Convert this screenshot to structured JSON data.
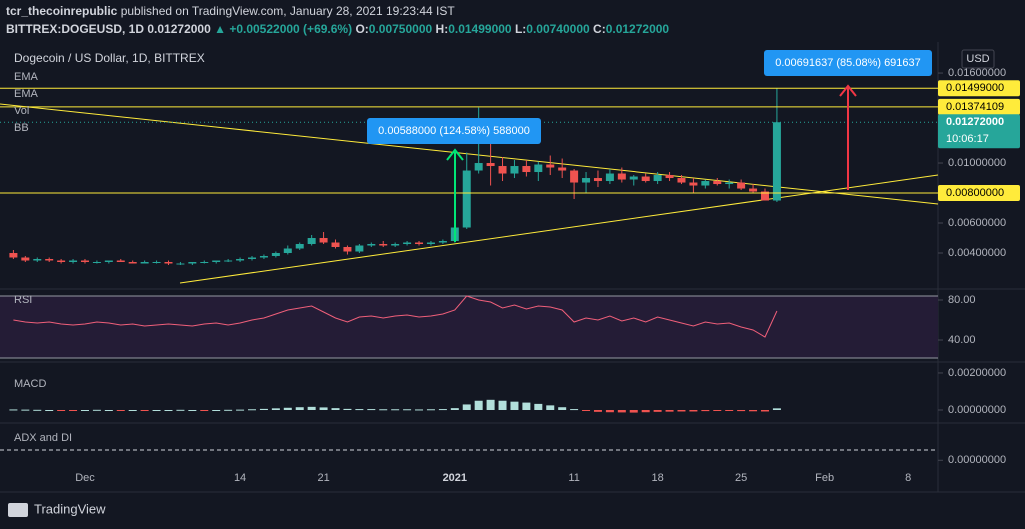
{
  "header": {
    "publisher": "tcr_thecoinrepublic",
    "published_text": "published on TradingView.com, January 28, 2021 19:23:44 IST",
    "symbol": "BITTREX:DOGEUSD, 1D",
    "price": "0.01272000",
    "change": "▲ +0.00522000 (+69.6%)",
    "ohlc": [
      {
        "key": "O:",
        "value": "0.00750000"
      },
      {
        "key": "H:",
        "value": "0.01499000"
      },
      {
        "key": "L:",
        "value": "0.00740000"
      },
      {
        "key": "C:",
        "value": "0.01272000"
      }
    ]
  },
  "chart_data": [
    {
      "type": "candlestick",
      "title": "Dogecoin / US Dollar, 1D, BITTREX",
      "indicators": [
        "EMA",
        "EMA",
        "Vol",
        "BB"
      ],
      "currency": "USD",
      "categories": [
        null,
        null,
        null,
        null,
        null,
        null,
        "Dec",
        null,
        null,
        null,
        null,
        null,
        null,
        null,
        null,
        null,
        null,
        null,
        null,
        "14",
        null,
        null,
        null,
        null,
        null,
        null,
        "21",
        null,
        null,
        null,
        null,
        null,
        null,
        null,
        null,
        null,
        null,
        "2021",
        null,
        null,
        null,
        null,
        null,
        null,
        null,
        null,
        null,
        "11",
        null,
        null,
        null,
        null,
        null,
        null,
        "18",
        null,
        null,
        null,
        null,
        null,
        null,
        "25",
        null,
        null,
        null,
        null,
        null,
        null,
        "Feb",
        null,
        null,
        null,
        null,
        null,
        null,
        "8",
        null,
        null
      ],
      "open": [
        0.004,
        0.0037,
        0.0035,
        0.0036,
        0.0035,
        0.0034,
        0.0035,
        0.0034,
        0.0034,
        0.0035,
        0.0034,
        0.0033,
        0.0034,
        0.0034,
        0.0033,
        0.0033,
        0.0034,
        0.0034,
        0.0035,
        0.0035,
        0.0036,
        0.0037,
        0.0038,
        0.004,
        0.0043,
        0.0046,
        0.005,
        0.0047,
        0.0044,
        0.0041,
        0.0045,
        0.0046,
        0.0045,
        0.0046,
        0.0047,
        0.0046,
        0.0047,
        0.0048,
        0.0057,
        0.0095,
        0.01,
        0.0098,
        0.0093,
        0.0098,
        0.0094,
        0.0099,
        0.0097,
        0.0095,
        0.0087,
        0.009,
        0.0088,
        0.0093,
        0.0089,
        0.0091,
        0.0088,
        0.0092,
        0.009,
        0.0087,
        0.0085,
        0.0088,
        0.0086,
        0.0087,
        0.0083,
        0.0081,
        0.0075,
        null,
        null,
        null,
        null,
        null,
        null,
        null,
        null,
        null,
        null,
        null,
        null,
        null
      ],
      "high": [
        0.0042,
        0.0038,
        0.0037,
        0.0037,
        0.0036,
        0.0036,
        0.0036,
        0.0035,
        0.0035,
        0.0036,
        0.0035,
        0.0035,
        0.0035,
        0.0035,
        0.0034,
        0.0034,
        0.0035,
        0.0035,
        0.0036,
        0.0037,
        0.0038,
        0.0039,
        0.0041,
        0.0045,
        0.0047,
        0.0052,
        0.0054,
        0.0049,
        0.0045,
        0.0046,
        0.0047,
        0.0048,
        0.0047,
        0.0048,
        0.0048,
        0.0048,
        0.0049,
        0.0058,
        0.0107,
        0.0137,
        0.012,
        0.0104,
        0.0102,
        0.0102,
        0.0101,
        0.0105,
        0.0103,
        0.0096,
        0.0094,
        0.0095,
        0.0096,
        0.0097,
        0.0092,
        0.0093,
        0.0094,
        0.0094,
        0.0092,
        0.009,
        0.0089,
        0.009,
        0.0089,
        0.0089,
        0.0086,
        0.0083,
        0.01499,
        null,
        null,
        null,
        null,
        null,
        null,
        null,
        null,
        null,
        null,
        null,
        null,
        null
      ],
      "low": [
        0.0036,
        0.0034,
        0.0034,
        0.0034,
        0.0033,
        0.0033,
        0.0033,
        0.0033,
        0.0033,
        0.0034,
        0.0033,
        0.0033,
        0.0033,
        0.0032,
        0.0032,
        0.0032,
        0.0033,
        0.0033,
        0.0034,
        0.0034,
        0.0035,
        0.0036,
        0.0037,
        0.0039,
        0.0042,
        0.0045,
        0.0046,
        0.0043,
        0.0039,
        0.004,
        0.0044,
        0.0044,
        0.0044,
        0.0045,
        0.0045,
        0.0045,
        0.0046,
        0.0047,
        0.0056,
        0.0093,
        0.0085,
        0.0088,
        0.009,
        0.0091,
        0.0088,
        0.0092,
        0.009,
        0.0076,
        0.008,
        0.0084,
        0.0086,
        0.0087,
        0.0085,
        0.0087,
        0.0086,
        0.0088,
        0.0086,
        0.008,
        0.0083,
        0.0085,
        0.0083,
        0.0082,
        0.008,
        0.0075,
        0.0074,
        null,
        null,
        null,
        null,
        null,
        null,
        null,
        null,
        null,
        null,
        null,
        null,
        null
      ],
      "close": [
        0.0037,
        0.0035,
        0.0036,
        0.0035,
        0.0034,
        0.0035,
        0.0034,
        0.0034,
        0.0035,
        0.0034,
        0.0033,
        0.0034,
        0.0034,
        0.0033,
        0.0033,
        0.0034,
        0.0034,
        0.0035,
        0.0035,
        0.0036,
        0.0037,
        0.0038,
        0.004,
        0.0043,
        0.0046,
        0.005,
        0.0047,
        0.0044,
        0.0041,
        0.0045,
        0.0046,
        0.0045,
        0.0046,
        0.0047,
        0.0046,
        0.0047,
        0.0048,
        0.0057,
        0.0095,
        0.01,
        0.0098,
        0.0093,
        0.0098,
        0.0094,
        0.0099,
        0.0097,
        0.0095,
        0.0087,
        0.009,
        0.0088,
        0.0093,
        0.0089,
        0.0091,
        0.0088,
        0.0092,
        0.009,
        0.0087,
        0.0085,
        0.0088,
        0.0086,
        0.0087,
        0.0083,
        0.0081,
        0.0075,
        0.01272,
        null,
        null,
        null,
        null,
        null,
        null,
        null,
        null,
        null,
        null,
        null,
        null,
        null
      ],
      "up_color": "#26a69a",
      "down_color": "#ef5350",
      "ylim": [
        0.002,
        0.01787
      ],
      "yticks": [
        {
          "value": 0.016,
          "label": "0.01600000"
        },
        {
          "value": 0.01,
          "label": "0.01000000"
        },
        {
          "value": 0.006,
          "label": "0.00600000"
        },
        {
          "value": 0.004,
          "label": "0.00400000"
        }
      ],
      "price_lines": [
        {
          "value": 0.01499,
          "label": "0.01499000",
          "color": "#ffeb3b"
        },
        {
          "value": 0.01374109,
          "label": "0.01374109",
          "color": "#ffeb3b"
        },
        {
          "value": 0.008,
          "label": "0.00800000",
          "color": "#ffeb3b"
        }
      ],
      "last_price": {
        "value": 0.01272,
        "label": "0.01272000",
        "countdown": "10:06:17",
        "color": "#26a69a"
      },
      "annotations": [
        "0.00588000 (124.58%) 588000",
        "0.00691637 (85.08%) 691637"
      ]
    },
    {
      "type": "line",
      "title": "RSI",
      "color": "#f05f7a",
      "values": [
        60,
        58,
        57,
        58,
        56,
        55,
        56,
        58,
        57,
        55,
        56,
        54,
        55,
        56,
        55,
        54,
        56,
        57,
        55,
        57,
        60,
        62,
        66,
        70,
        72,
        74,
        68,
        62,
        58,
        63,
        64,
        62,
        64,
        65,
        63,
        64,
        66,
        70,
        84,
        80,
        78,
        72,
        75,
        71,
        74,
        73,
        70,
        58,
        62,
        60,
        64,
        59,
        62,
        58,
        63,
        60,
        57,
        54,
        58,
        56,
        57,
        53,
        50,
        43,
        69,
        null,
        null,
        null,
        null,
        null,
        null,
        null,
        null,
        null,
        null,
        null,
        null,
        null
      ],
      "ylim": [
        22,
        84
      ],
      "yticks": [
        {
          "value": 80,
          "label": "80.00"
        },
        {
          "value": 40,
          "label": "40.00"
        }
      ]
    },
    {
      "type": "bar",
      "title": "MACD",
      "up_color": "#b2dfdb",
      "down_color": "#ef5350",
      "values": [
        3e-05,
        2e-05,
        1e-05,
        0,
        -1e-05,
        -1e-05,
        0,
        1e-05,
        0,
        -1e-05,
        0,
        -1e-05,
        0,
        0,
        1e-05,
        0,
        -1e-05,
        0,
        1e-05,
        2e-05,
        4e-05,
        6e-05,
        9e-05,
        0.00012,
        0.00015,
        0.00017,
        0.00014,
        0.0001,
        6e-05,
        5e-05,
        5e-05,
        4e-05,
        4e-05,
        4e-05,
        3e-05,
        4e-05,
        5e-05,
        0.0001,
        0.0003,
        0.0005,
        0.00055,
        0.0005,
        0.00045,
        0.0004,
        0.00033,
        0.00025,
        0.00015,
        5e-05,
        -5e-05,
        -0.0001,
        -0.00012,
        -0.00013,
        -0.00014,
        -0.00012,
        -0.0001,
        -9e-05,
        -8e-05,
        -8e-05,
        -6e-05,
        -5e-05,
        -5e-05,
        -6e-05,
        -7e-05,
        -8e-05,
        9e-05,
        null,
        null,
        null,
        null,
        null,
        null,
        null,
        null,
        null,
        null,
        null,
        null,
        null
      ],
      "ylim": [
        -0.00054,
        0.00243
      ],
      "yticks": [
        {
          "value": 0.002,
          "label": "0.00200000"
        },
        {
          "value": 0,
          "label": "0.00000000"
        }
      ]
    },
    {
      "type": "empty",
      "title": "ADX and DI",
      "ylim": [
        -0.0016,
        0.0019
      ],
      "yticks": [
        {
          "value": 0,
          "label": "0.00000000"
        }
      ]
    }
  ],
  "footer": {
    "brand": "TradingView"
  }
}
